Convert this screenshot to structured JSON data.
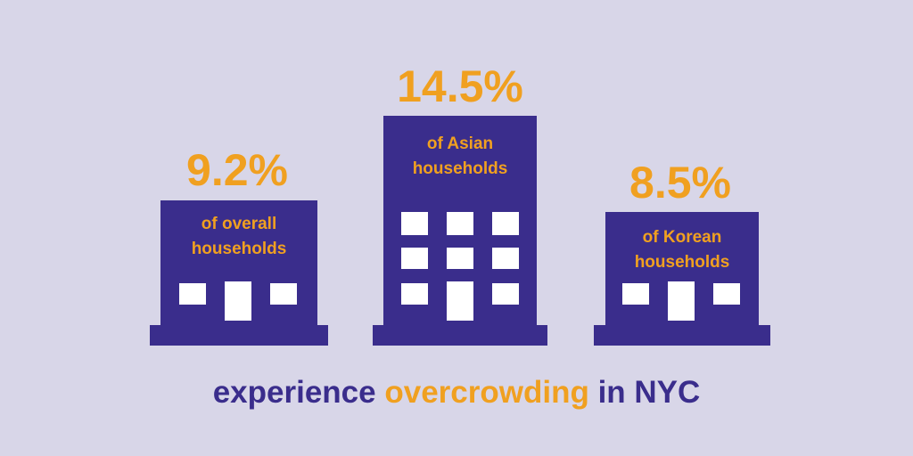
{
  "buildings": [
    {
      "value": "9.2%",
      "label": [
        "of overall",
        "households"
      ]
    },
    {
      "value": "14.5%",
      "label": [
        "of Asian",
        "households"
      ]
    },
    {
      "value": "8.5%",
      "label": [
        "of Korean",
        "households"
      ]
    }
  ],
  "caption": [
    "experience",
    "overcrowding",
    "in NYC"
  ]
}
